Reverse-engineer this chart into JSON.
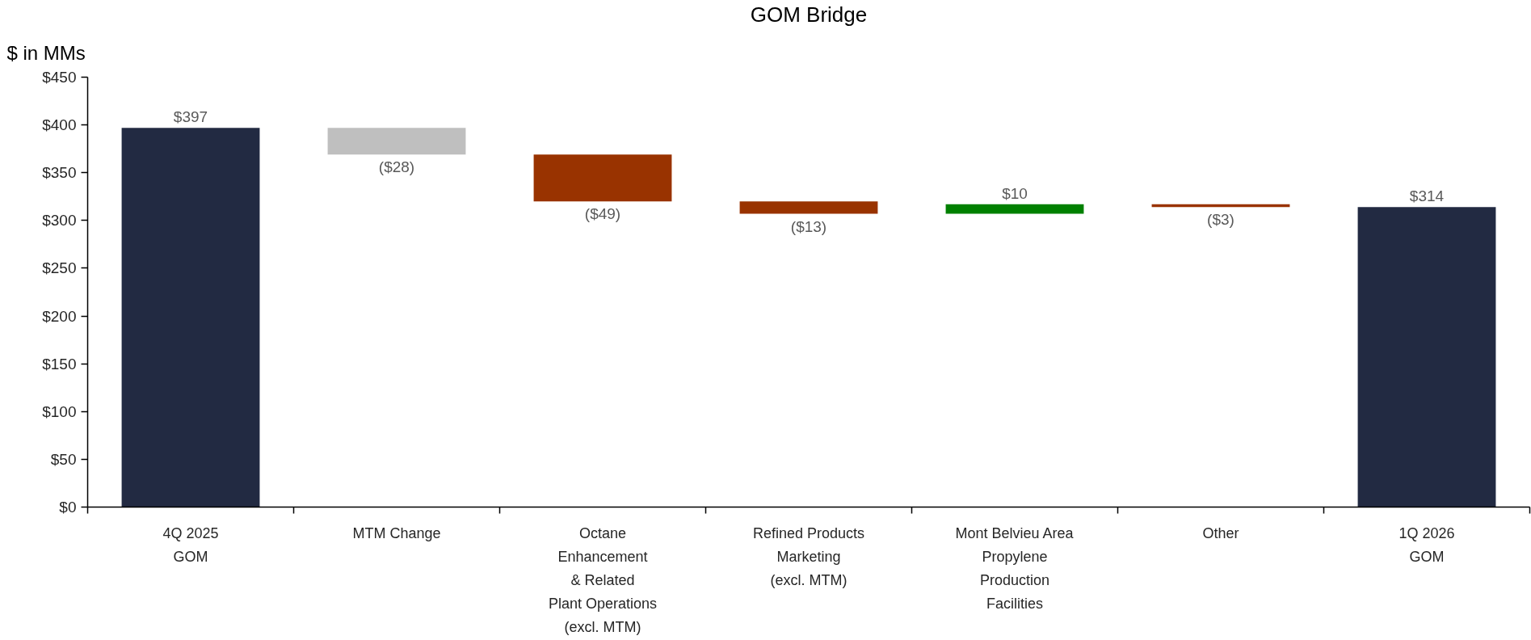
{
  "chart_data": {
    "type": "bar",
    "title": "GOM Bridge",
    "ylabel": "$ in MMs",
    "categories": [
      "4Q 2025\nGOM",
      "MTM Change",
      "Octane\nEnhancement\n& Related\nPlant Operations\n(excl. MTM)",
      "Refined Products\nMarketing\n(excl. MTM)",
      "Mont Belvieu Area\nPropylene\nProduction\nFacilities",
      "Other",
      "1Q 2026\nGOM"
    ],
    "values": [
      397,
      -28,
      -49,
      -13,
      10,
      -3,
      314
    ],
    "base": [
      0,
      397,
      369,
      320,
      307,
      317,
      0
    ],
    "colors": [
      "#222a42",
      "#bfbfbf",
      "#993300",
      "#993300",
      "#008000",
      "#993300",
      "#222a42"
    ],
    "value_labels": [
      "$397",
      "($28)",
      "($49)",
      "($13)",
      "$10",
      "($3)",
      "$314"
    ],
    "ylim": [
      0,
      450
    ],
    "yticks": [
      {
        "value": 0,
        "label": "$0"
      },
      {
        "value": 50,
        "label": "$50"
      },
      {
        "value": 100,
        "label": "$100"
      },
      {
        "value": 150,
        "label": "$150"
      },
      {
        "value": 200,
        "label": "$200"
      },
      {
        "value": 250,
        "label": "$250"
      },
      {
        "value": 300,
        "label": "$300"
      },
      {
        "value": 350,
        "label": "$350"
      },
      {
        "value": 400,
        "label": "$400"
      },
      {
        "value": 450,
        "label": "$450"
      }
    ],
    "grid": false
  }
}
